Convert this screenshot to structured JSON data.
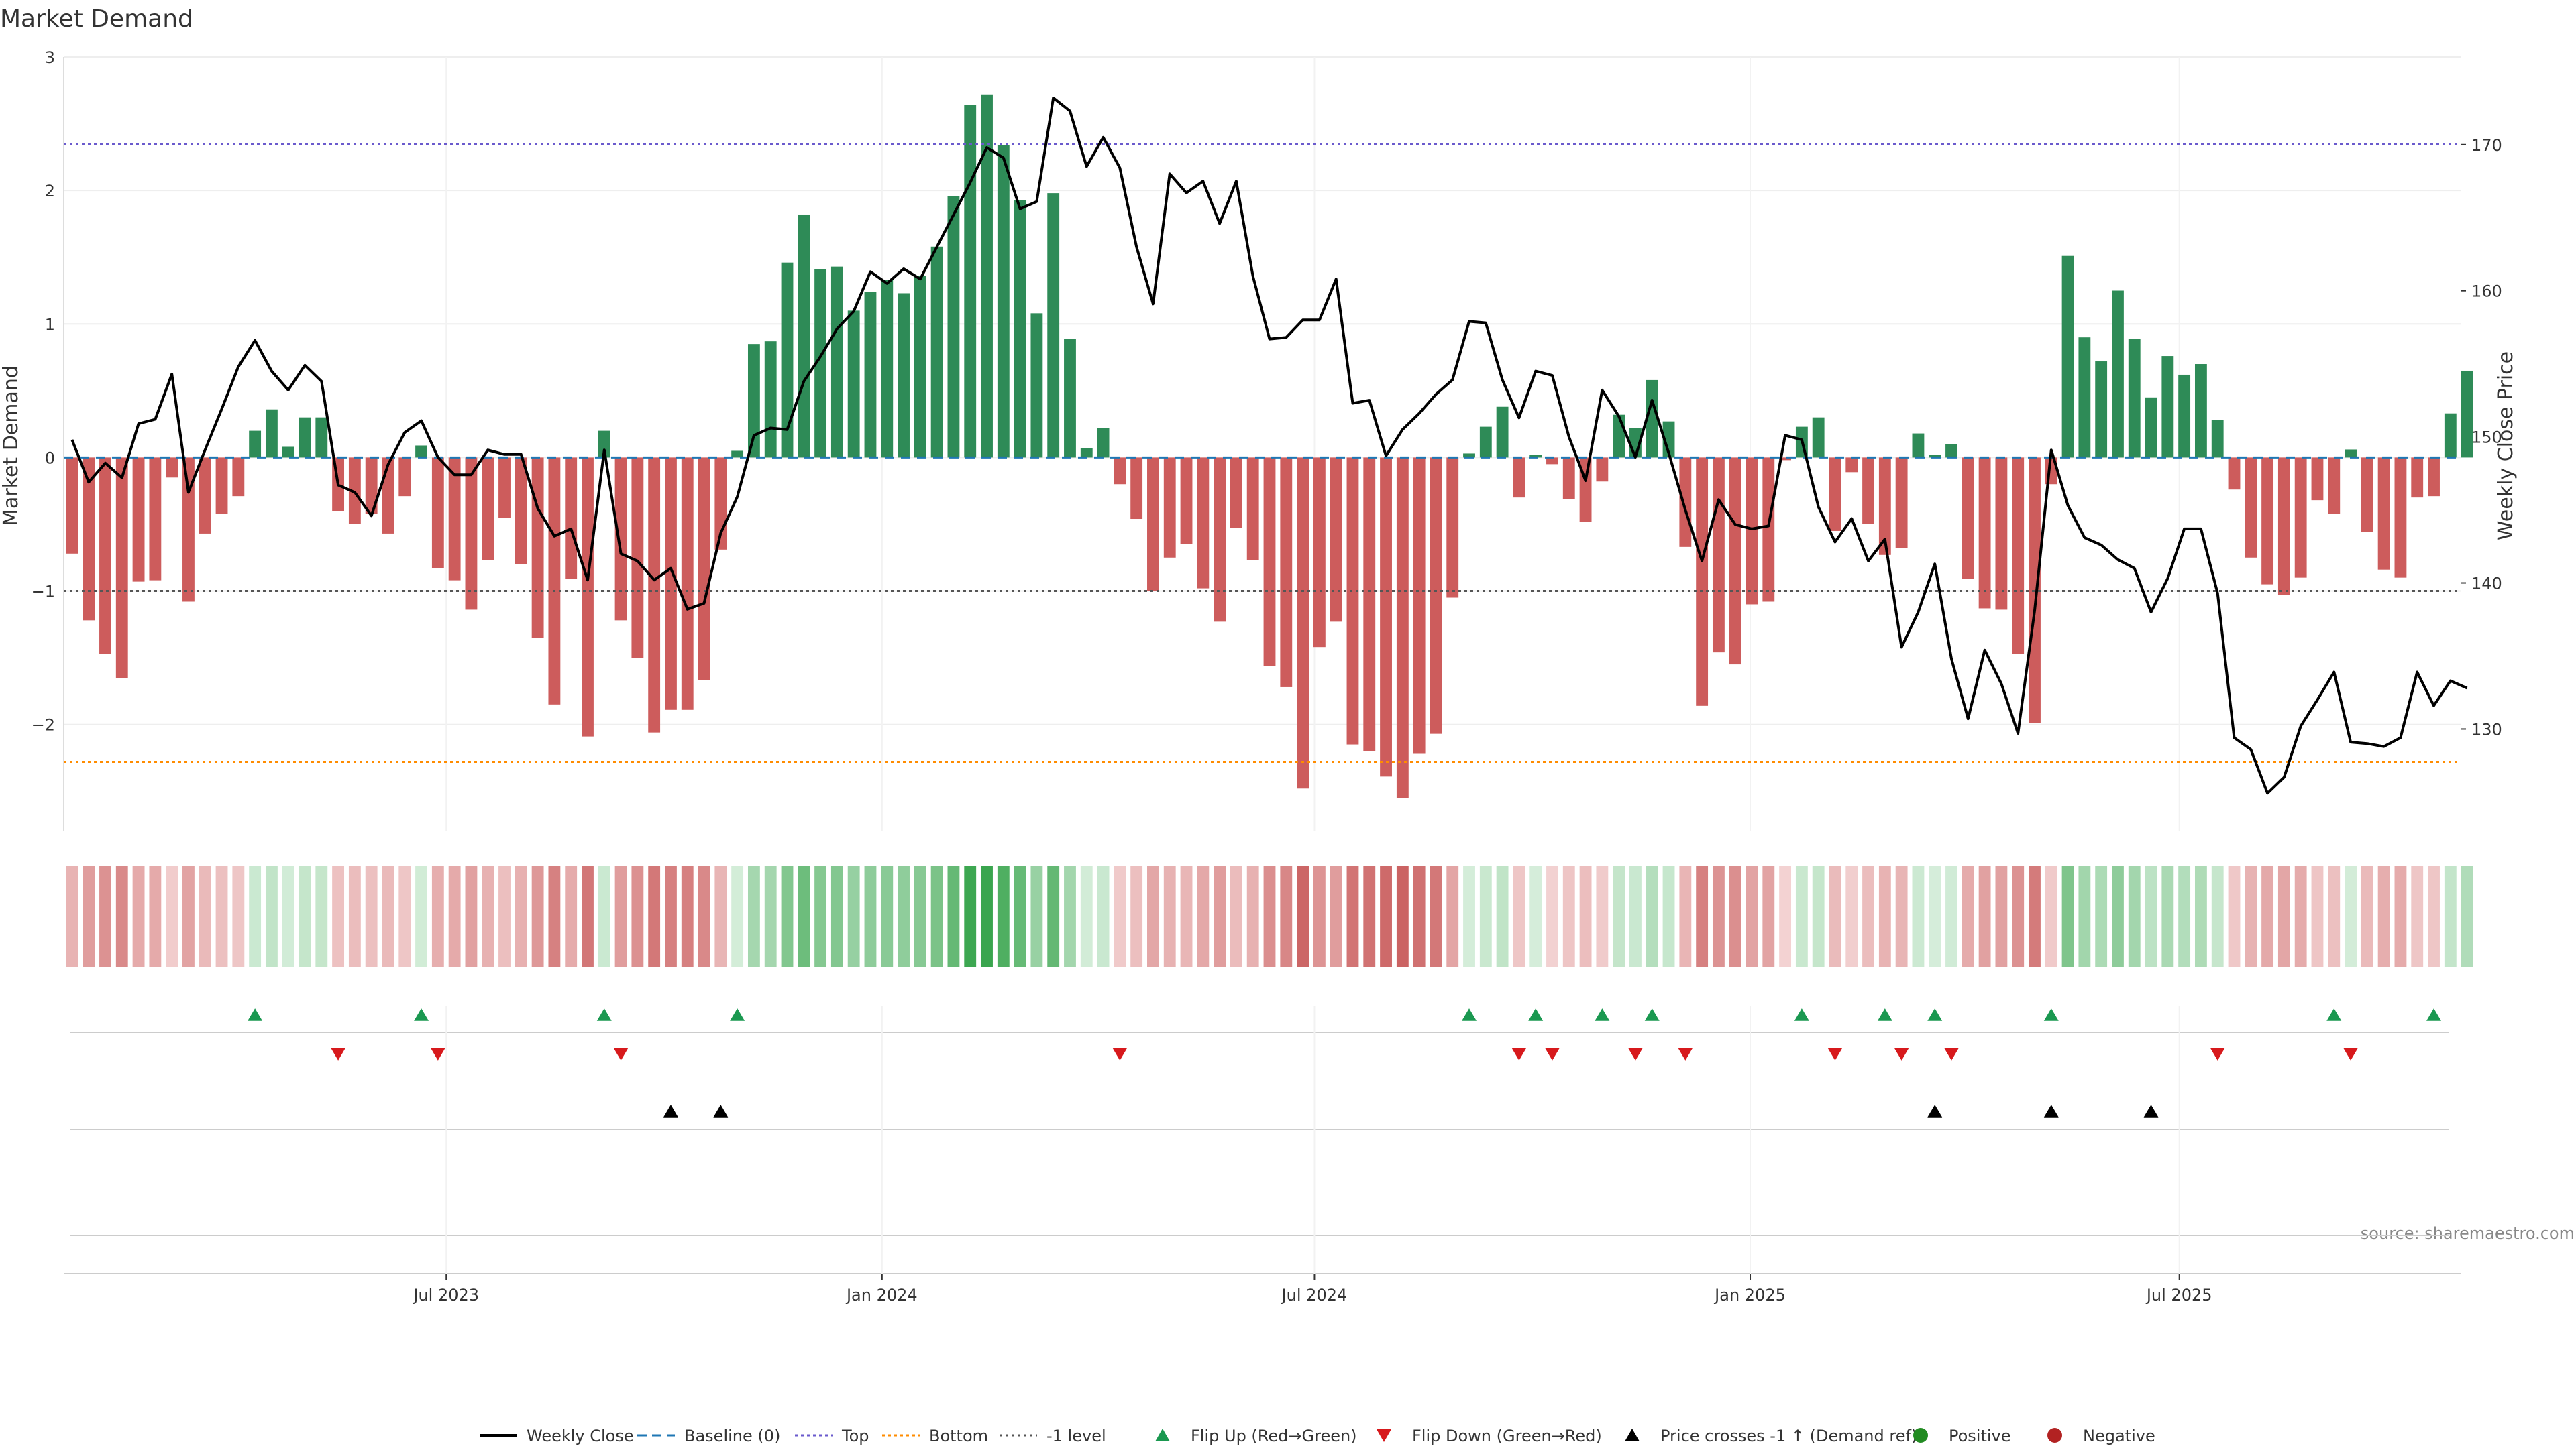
{
  "chart_data": {
    "type": "bar",
    "title": "Market Demand",
    "ylabel": "Market Demand",
    "y2label": "Weekly Close Price",
    "ylim": [
      -2.8,
      3
    ],
    "y2lim": [
      123,
      176
    ],
    "yticks": [
      {
        "v": 3,
        "t": "3"
      },
      {
        "v": 2,
        "t": "2"
      },
      {
        "v": 1,
        "t": "1"
      },
      {
        "v": 0,
        "t": "0"
      },
      {
        "v": -1,
        "t": "−1"
      },
      {
        "v": -2,
        "t": "−2"
      }
    ],
    "y2ticks": [
      {
        "v": 170,
        "t": "170"
      },
      {
        "v": 160,
        "t": "160"
      },
      {
        "v": 150,
        "t": "150"
      },
      {
        "v": 140,
        "t": "140"
      },
      {
        "v": 130,
        "t": "130"
      }
    ],
    "xticks": [
      {
        "i": 22.5,
        "t": "Jul 2023"
      },
      {
        "i": 48.7,
        "t": "Jan 2024"
      },
      {
        "i": 74.7,
        "t": "Jul 2024"
      },
      {
        "i": 100.9,
        "t": "Jan 2025"
      },
      {
        "i": 126.7,
        "t": "Jul 2025"
      }
    ],
    "levels": {
      "top": 2.35,
      "bottom": -2.28,
      "minus_one": -1
    },
    "demand": [
      -0.72,
      -1.22,
      -1.47,
      -1.65,
      -0.93,
      -0.92,
      -0.15,
      -1.08,
      -0.57,
      -0.42,
      -0.29,
      0.2,
      0.36,
      0.08,
      0.3,
      0.3,
      -0.4,
      -0.5,
      -0.42,
      -0.57,
      -0.29,
      0.09,
      -0.83,
      -0.92,
      -1.14,
      -0.77,
      -0.45,
      -0.8,
      -1.35,
      -1.85,
      -0.91,
      -2.09,
      0.2,
      -1.22,
      -1.5,
      -2.06,
      -1.89,
      -1.89,
      -1.67,
      -0.69,
      0.05,
      0.85,
      0.87,
      1.46,
      1.82,
      1.41,
      1.43,
      1.1,
      1.24,
      1.33,
      1.23,
      1.36,
      1.58,
      1.96,
      2.64,
      2.72,
      2.34,
      1.93,
      1.08,
      1.98,
      0.89,
      0.07,
      0.22,
      -0.2,
      -0.46,
      -1.0,
      -0.75,
      -0.65,
      -0.98,
      -1.23,
      -0.53,
      -0.77,
      -1.56,
      -1.72,
      -2.48,
      -1.42,
      -1.23,
      -2.15,
      -2.2,
      -2.39,
      -2.55,
      -2.22,
      -2.07,
      -1.05,
      0.03,
      0.23,
      0.38,
      -0.3,
      0.02,
      -0.05,
      -0.31,
      -0.48,
      -0.18,
      0.32,
      0.22,
      0.58,
      0.27,
      -0.67,
      -1.86,
      -1.46,
      -1.55,
      -1.1,
      -1.08,
      -0.02,
      0.23,
      0.3,
      -0.55,
      -0.11,
      -0.5,
      -0.73,
      -0.68,
      0.18,
      0.02,
      0.1,
      -0.91,
      -1.13,
      -1.14,
      -1.47,
      -1.99,
      -0.2,
      1.51,
      0.9,
      0.72,
      1.25,
      0.89,
      0.45,
      0.76,
      0.62,
      0.7,
      0.28,
      -0.24,
      -0.75,
      -0.95,
      -1.03,
      -0.9,
      -0.32,
      -0.42,
      0.06,
      -0.56,
      -0.84,
      -0.9,
      -0.3,
      -0.29,
      0.33,
      0.65
    ],
    "price": [
      149.8,
      146.9,
      148.2,
      147.2,
      150.9,
      151.2,
      154.3,
      146.2,
      149.1,
      151.9,
      154.8,
      156.6,
      154.5,
      153.2,
      154.9,
      153.8,
      146.7,
      146.2,
      144.6,
      148.1,
      150.3,
      151.1,
      148.6,
      147.4,
      147.4,
      149.1,
      148.8,
      148.8,
      145.1,
      143.2,
      143.7,
      140.2,
      149.1,
      142.0,
      141.5,
      140.2,
      141.0,
      138.2,
      138.6,
      143.4,
      145.9,
      150.1,
      150.6,
      150.5,
      153.8,
      155.5,
      157.4,
      158.6,
      161.3,
      160.5,
      161.5,
      160.8,
      163.0,
      165.2,
      167.4,
      169.8,
      169.1,
      165.6,
      166.1,
      173.2,
      172.3,
      168.5,
      170.5,
      168.4,
      163.0,
      159.1,
      168.0,
      166.7,
      167.5,
      164.6,
      167.5,
      161.0,
      156.7,
      156.8,
      158.0,
      158.0,
      160.8,
      152.3,
      152.5,
      148.7,
      150.5,
      151.6,
      152.9,
      153.9,
      157.9,
      157.8,
      153.9,
      151.3,
      154.5,
      154.2,
      150.0,
      147.0,
      153.2,
      151.4,
      148.6,
      152.5,
      148.9,
      145.0,
      141.5,
      145.7,
      144.0,
      143.7,
      143.9,
      150.1,
      149.8,
      145.2,
      142.8,
      144.4,
      141.5,
      143.0,
      135.6,
      138.0,
      141.3,
      134.8,
      130.7,
      135.4,
      133.1,
      129.7,
      138.1,
      149.1,
      145.3,
      143.1,
      142.6,
      141.6,
      141.0,
      138.0,
      140.3,
      143.7,
      143.7,
      139.3,
      129.4,
      128.6,
      125.6,
      126.7,
      130.2,
      132.0,
      133.9,
      129.1,
      129.0,
      128.8,
      129.4,
      133.9,
      131.6,
      133.3,
      132.8
    ],
    "flip_up": [
      11,
      21,
      32,
      40,
      84,
      88,
      92,
      95,
      104,
      109,
      112,
      119,
      136,
      142
    ],
    "flip_down": [
      16,
      22,
      33,
      63,
      87,
      89,
      94,
      97,
      106,
      110,
      113,
      129,
      137
    ],
    "price_cross": [
      36,
      39,
      112,
      119,
      125
    ],
    "colors": {
      "positive": "#2e8b57",
      "negative": "#cd5c5c",
      "price": "#000000",
      "baseline": "#1f77b4",
      "top": "#6a5acd",
      "bottom": "#ff8c00",
      "minus_one": "#555555",
      "flip_up": "#1a9850",
      "flip_down": "#d7191c",
      "cross": "#000000",
      "positive_dot": "#228b22",
      "negative_dot": "#b22222"
    },
    "legend": [
      {
        "key": "weekly_close",
        "label": "Weekly Close"
      },
      {
        "key": "baseline",
        "label": "Baseline (0)"
      },
      {
        "key": "top",
        "label": "Top"
      },
      {
        "key": "bottom",
        "label": "Bottom"
      },
      {
        "key": "minus_one",
        "label": "-1 level"
      },
      {
        "key": "flip_up",
        "label": "Flip Up (Red→Green)"
      },
      {
        "key": "flip_down",
        "label": "Flip Down (Green→Red)"
      },
      {
        "key": "cross",
        "label": "Price crosses -1 ↑ (Demand ref)"
      },
      {
        "key": "positive",
        "label": "Positive"
      },
      {
        "key": "negative",
        "label": "Negative"
      }
    ],
    "legend_position": "bottom-center",
    "grid": true
  },
  "source_text": "source: sharemaestro.com"
}
